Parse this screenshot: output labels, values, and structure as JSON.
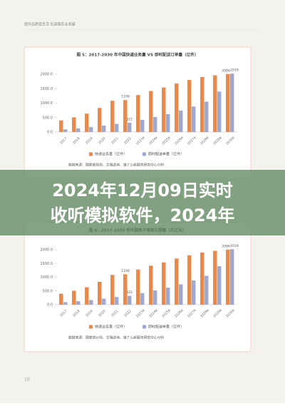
{
  "header": {
    "running_title": "提升品质促生活 加速服务业发展"
  },
  "charts": [
    {
      "type": "bar",
      "title": "图 5：2017-2030 年中国快递业务量 VS 即时配送订单量（亿件）",
      "categories": [
        "2017",
        "2018",
        "2019",
        "2020",
        "2021",
        "2022",
        "2023e",
        "2024e",
        "2025e",
        "2026e",
        "2027e",
        "2028e",
        "2029e",
        "2030e"
      ],
      "series": [
        {
          "name": "快递业务量（亿件）",
          "color": "#e8894a",
          "values": [
            401,
            507,
            635,
            833,
            1083,
            1106,
            1280,
            1420,
            1540,
            1680,
            1800,
            1900,
            1960,
            2006
          ],
          "value_labels": [
            null,
            null,
            null,
            null,
            null,
            "1106",
            null,
            null,
            null,
            null,
            null,
            null,
            null,
            "2006"
          ]
        },
        {
          "name": "即时配送单量（亿件）",
          "color": "#9ea9cf",
          "values": [
            92,
            126,
            170,
            220,
            280,
            321,
            420,
            520,
            620,
            740,
            880,
            1050,
            1400,
            2019
          ],
          "value_labels": [
            null,
            null,
            null,
            null,
            null,
            "321",
            null,
            null,
            null,
            null,
            null,
            null,
            null,
            "2019"
          ]
        }
      ],
      "ylim": [
        0,
        2000
      ],
      "yticks": [
        {
          "value": 0,
          "label": "0.0"
        },
        {
          "value": 500,
          "label": "500.0"
        },
        {
          "value": 1000,
          "label": "1000.0"
        },
        {
          "value": 1500,
          "label": "1500.0"
        },
        {
          "value": 2000,
          "label": "2000.0"
        }
      ],
      "source": "数据来源：国家邮政局、艾瑞咨询、饿了么新服务研究中心分析"
    },
    {
      "type": "bar",
      "title": "图 6：2017-2030 年中国电子商务交易额（万亿元）",
      "categories": [
        "2017",
        "2018",
        "2019",
        "2020",
        "2021",
        "2022",
        "2023e",
        "2024e",
        "2025e",
        "2026e",
        "2027e",
        "2028e",
        "2029e",
        "2030e"
      ],
      "series": [
        {
          "name": "快递业务量（亿件）",
          "color": "#e8894a",
          "values": [
            401,
            507,
            635,
            833,
            1083,
            1106,
            1280,
            1420,
            1540,
            1680,
            1800,
            1900,
            1960,
            2006
          ],
          "value_labels": [
            null,
            null,
            null,
            null,
            null,
            "1106",
            null,
            null,
            null,
            null,
            null,
            null,
            null,
            "2006"
          ]
        },
        {
          "name": "即时配送单量（亿件）",
          "color": "#9ea9cf",
          "values": [
            92,
            126,
            170,
            220,
            280,
            321,
            420,
            520,
            620,
            740,
            880,
            1050,
            1400,
            2019
          ],
          "value_labels": [
            null,
            null,
            null,
            null,
            null,
            "321",
            null,
            null,
            null,
            null,
            null,
            null,
            null,
            "2019"
          ]
        }
      ],
      "ylim": [
        0,
        2000
      ],
      "yticks": [
        {
          "value": 0,
          "label": "0.0"
        },
        {
          "value": 500,
          "label": "500.0"
        },
        {
          "value": 1000,
          "label": "1000.0"
        },
        {
          "value": 1500,
          "label": "1500.0"
        },
        {
          "value": 2000,
          "label": "2000.0"
        }
      ],
      "source": "数据来源：国家统计局、艾瑞咨询、饿了么新服务研究中心分析"
    }
  ],
  "banner": {
    "line1": "2024年12月09日实时",
    "line2": "收听模拟软件，2024年"
  },
  "footer": {
    "page_number": "10"
  }
}
